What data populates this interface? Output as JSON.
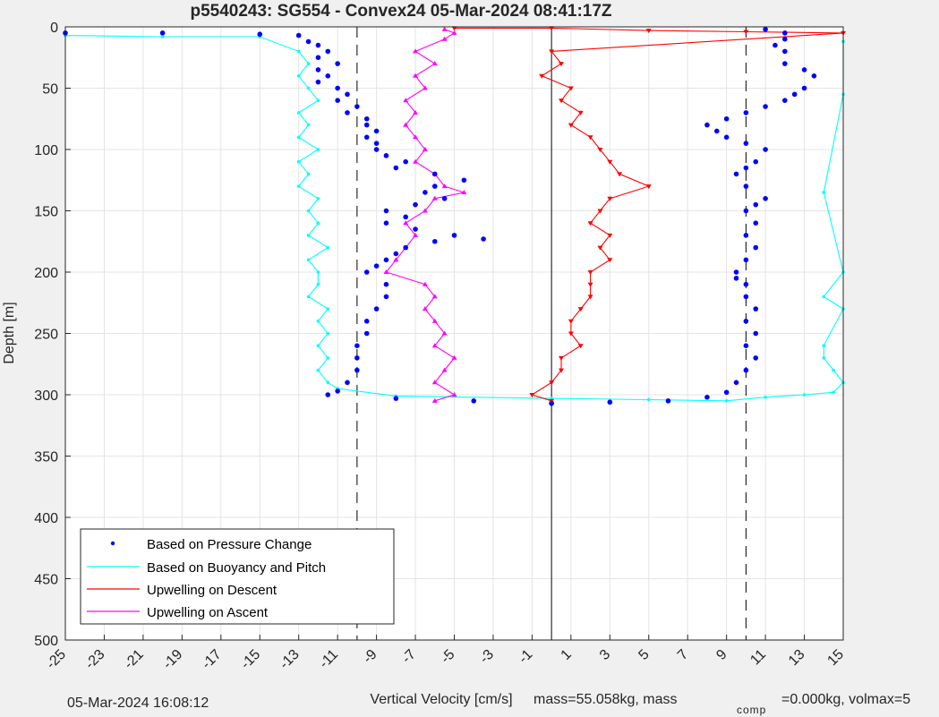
{
  "chart_data": {
    "type": "scatter",
    "title": "p5540243: SG554 - Convex24 05-Mar-2024 08:41:17Z",
    "xlabel": "Vertical Velocity [cm/s]",
    "ylabel": "Depth [m]",
    "xlim": [
      -25,
      15
    ],
    "ylim": [
      0,
      500
    ],
    "y_reversed": true,
    "grid": true,
    "legend_position": "bottom-left",
    "xticks": [
      -25,
      -23,
      -21,
      -19,
      -17,
      -15,
      -13,
      -11,
      -9,
      -7,
      -5,
      -3,
      -1,
      1,
      3,
      5,
      7,
      9,
      11,
      13,
      15
    ],
    "yticks": [
      0,
      50,
      100,
      150,
      200,
      250,
      300,
      350,
      400,
      450,
      500
    ],
    "reference_lines": [
      {
        "x": -10,
        "style": "dashed"
      },
      {
        "x": 0,
        "style": "solid"
      },
      {
        "x": 10,
        "style": "dashed"
      }
    ],
    "series": [
      {
        "name": "Based on Pressure Change",
        "color": "#0000ff",
        "style": "dots",
        "descent": [
          [
            -25,
            5
          ],
          [
            -20,
            5
          ],
          [
            -15,
            6
          ],
          [
            -13,
            7
          ],
          [
            -12.5,
            12
          ],
          [
            -12,
            15
          ],
          [
            -11.5,
            20
          ],
          [
            -12,
            25
          ],
          [
            -11,
            30
          ],
          [
            -12,
            35
          ],
          [
            -11.5,
            40
          ],
          [
            -12,
            45
          ],
          [
            -11,
            50
          ],
          [
            -10.5,
            55
          ],
          [
            -11,
            60
          ],
          [
            -10,
            65
          ],
          [
            -10.5,
            70
          ],
          [
            -9.5,
            75
          ],
          [
            -9.5,
            80
          ],
          [
            -9,
            85
          ],
          [
            -9.5,
            90
          ],
          [
            -9,
            95
          ],
          [
            -9,
            100
          ],
          [
            -8.5,
            105
          ],
          [
            -7.5,
            110
          ],
          [
            -8,
            115
          ],
          [
            -6,
            120
          ],
          [
            -4.5,
            125
          ],
          [
            -6,
            130
          ],
          [
            -6.5,
            135
          ],
          [
            -5.5,
            140
          ],
          [
            -7,
            145
          ],
          [
            -8.5,
            150
          ],
          [
            -7.5,
            155
          ],
          [
            -8.5,
            160
          ],
          [
            -7,
            165
          ],
          [
            -5,
            170
          ],
          [
            -3.5,
            173
          ],
          [
            -6,
            175
          ],
          [
            -7.5,
            180
          ],
          [
            -8,
            185
          ],
          [
            -8.5,
            190
          ],
          [
            -9,
            195
          ],
          [
            -9.5,
            200
          ],
          [
            -8.5,
            210
          ],
          [
            -8.5,
            220
          ],
          [
            -9,
            230
          ],
          [
            -9.5,
            240
          ],
          [
            -9.5,
            250
          ],
          [
            -10,
            260
          ],
          [
            -10,
            270
          ],
          [
            -10,
            280
          ],
          [
            -10.5,
            290
          ],
          [
            -11,
            297
          ],
          [
            -11.5,
            300
          ],
          [
            -8,
            303
          ],
          [
            -4,
            305
          ],
          [
            0,
            307
          ]
        ],
        "ascent": [
          [
            0,
            307
          ],
          [
            3,
            306
          ],
          [
            6,
            305
          ],
          [
            8,
            302
          ],
          [
            9,
            298
          ],
          [
            9.5,
            290
          ],
          [
            10,
            280
          ],
          [
            10.5,
            270
          ],
          [
            10,
            260
          ],
          [
            10.5,
            250
          ],
          [
            10,
            240
          ],
          [
            10.5,
            230
          ],
          [
            10,
            220
          ],
          [
            10,
            210
          ],
          [
            9.5,
            205
          ],
          [
            9.5,
            200
          ],
          [
            10,
            190
          ],
          [
            10.5,
            180
          ],
          [
            10,
            170
          ],
          [
            10.5,
            160
          ],
          [
            10,
            150
          ],
          [
            10.5,
            145
          ],
          [
            11,
            140
          ],
          [
            10,
            130
          ],
          [
            9.5,
            120
          ],
          [
            10,
            115
          ],
          [
            10.5,
            110
          ],
          [
            11,
            100
          ],
          [
            10,
            95
          ],
          [
            9,
            90
          ],
          [
            8.5,
            85
          ],
          [
            8,
            80
          ],
          [
            9,
            75
          ],
          [
            10,
            70
          ],
          [
            11,
            65
          ],
          [
            12,
            60
          ],
          [
            12.5,
            55
          ],
          [
            13,
            50
          ],
          [
            13.5,
            40
          ],
          [
            13,
            35
          ],
          [
            12,
            30
          ],
          [
            12,
            20
          ],
          [
            11.5,
            15
          ],
          [
            12,
            10
          ],
          [
            12,
            5
          ],
          [
            11,
            2
          ]
        ]
      },
      {
        "name": "Based on Buoyancy and Pitch",
        "color": "#00ffff",
        "style": "line-dots",
        "descent": [
          [
            -25,
            7
          ],
          [
            -20,
            8
          ],
          [
            -15,
            8
          ],
          [
            -13,
            20
          ],
          [
            -12.5,
            30
          ],
          [
            -13,
            40
          ],
          [
            -12.5,
            50
          ],
          [
            -12,
            60
          ],
          [
            -13,
            70
          ],
          [
            -12.5,
            80
          ],
          [
            -13,
            90
          ],
          [
            -12,
            100
          ],
          [
            -13,
            110
          ],
          [
            -12.5,
            120
          ],
          [
            -13,
            130
          ],
          [
            -12,
            140
          ],
          [
            -12.5,
            150
          ],
          [
            -12,
            160
          ],
          [
            -12.5,
            170
          ],
          [
            -11.5,
            180
          ],
          [
            -12.5,
            190
          ],
          [
            -12,
            200
          ],
          [
            -12,
            210
          ],
          [
            -12.5,
            220
          ],
          [
            -11.5,
            230
          ],
          [
            -12,
            240
          ],
          [
            -11.5,
            250
          ],
          [
            -12,
            260
          ],
          [
            -11.5,
            270
          ],
          [
            -12,
            280
          ],
          [
            -11.5,
            290
          ],
          [
            -11,
            295
          ],
          [
            -8,
            301
          ],
          [
            0,
            303
          ]
        ],
        "ascent": [
          [
            0,
            303
          ],
          [
            5,
            304
          ],
          [
            9,
            305
          ],
          [
            11,
            302
          ],
          [
            13,
            300
          ],
          [
            14.5,
            298
          ],
          [
            15,
            290
          ],
          [
            14.5,
            280
          ],
          [
            14,
            270
          ],
          [
            14,
            260
          ],
          [
            15,
            230
          ],
          [
            14,
            220
          ],
          [
            15,
            200
          ],
          [
            14,
            135
          ],
          [
            15,
            55
          ],
          [
            15,
            12
          ]
        ]
      },
      {
        "name": "Upwelling on Descent",
        "color": "#ff0000",
        "style": "line-markers",
        "points": [
          [
            -5,
            1
          ],
          [
            0,
            1
          ],
          [
            5,
            3
          ],
          [
            10,
            4
          ],
          [
            15,
            5
          ],
          [
            0,
            20
          ],
          [
            0.5,
            30
          ],
          [
            -0.5,
            40
          ],
          [
            1,
            50
          ],
          [
            0.5,
            60
          ],
          [
            1.5,
            70
          ],
          [
            1,
            80
          ],
          [
            2,
            90
          ],
          [
            2.5,
            100
          ],
          [
            3,
            110
          ],
          [
            3.5,
            120
          ],
          [
            5,
            130
          ],
          [
            3,
            140
          ],
          [
            2.5,
            150
          ],
          [
            2,
            160
          ],
          [
            3,
            170
          ],
          [
            2.5,
            180
          ],
          [
            3,
            190
          ],
          [
            2,
            200
          ],
          [
            2,
            210
          ],
          [
            2,
            220
          ],
          [
            1.5,
            230
          ],
          [
            1,
            240
          ],
          [
            1,
            250
          ],
          [
            1.5,
            260
          ],
          [
            0.5,
            270
          ],
          [
            0.5,
            280
          ],
          [
            0,
            290
          ],
          [
            -1,
            300
          ],
          [
            0,
            305
          ]
        ]
      },
      {
        "name": "Upwelling on Ascent",
        "color": "#ff00ff",
        "style": "line-markers",
        "points": [
          [
            -5.5,
            2
          ],
          [
            -5,
            5
          ],
          [
            -5.5,
            10
          ],
          [
            -7,
            20
          ],
          [
            -6,
            30
          ],
          [
            -7,
            40
          ],
          [
            -6.5,
            50
          ],
          [
            -7.5,
            60
          ],
          [
            -7,
            70
          ],
          [
            -7.5,
            80
          ],
          [
            -7,
            90
          ],
          [
            -6.5,
            100
          ],
          [
            -7,
            110
          ],
          [
            -6,
            120
          ],
          [
            -5.5,
            130
          ],
          [
            -4.5,
            135
          ],
          [
            -6,
            140
          ],
          [
            -6.5,
            150
          ],
          [
            -7.5,
            160
          ],
          [
            -7,
            170
          ],
          [
            -7.5,
            180
          ],
          [
            -8,
            190
          ],
          [
            -8.5,
            200
          ],
          [
            -6.5,
            210
          ],
          [
            -6,
            220
          ],
          [
            -6.5,
            230
          ],
          [
            -6,
            240
          ],
          [
            -5.5,
            250
          ],
          [
            -6,
            260
          ],
          [
            -5,
            270
          ],
          [
            -5.5,
            280
          ],
          [
            -6,
            290
          ],
          [
            -5,
            300
          ],
          [
            -6,
            305
          ]
        ]
      }
    ]
  },
  "footer": {
    "timestamp": "05-Mar-2024 16:08:12",
    "info_prefix": "mass=55.058kg, mass",
    "info_sub": "comp",
    "info_suffix": "=0.000kg, volmax=5"
  }
}
